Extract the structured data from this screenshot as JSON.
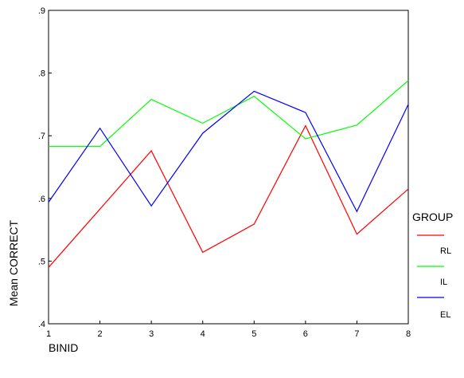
{
  "chart_data": {
    "type": "line",
    "title": "",
    "xlabel": "BINID",
    "ylabel": "Mean CORRECT",
    "x": [
      1,
      2,
      3,
      4,
      5,
      6,
      7,
      8
    ],
    "ylim": [
      0.4,
      0.9
    ],
    "yticks": [
      ".4",
      ".5",
      ".6",
      ".7",
      ".8",
      ".9"
    ],
    "xticks": [
      "1",
      "2",
      "3",
      "4",
      "5",
      "6",
      "7",
      "8"
    ],
    "grid": false,
    "legend": {
      "title": "GROUP",
      "placement": "right"
    },
    "series": [
      {
        "name": "RL",
        "color": "#ff0000",
        "values": [
          0.49,
          0.583,
          0.676,
          0.514,
          0.559,
          0.716,
          0.543,
          0.615
        ]
      },
      {
        "name": "IL",
        "color": "#00ff00",
        "values": [
          0.683,
          0.683,
          0.758,
          0.72,
          0.763,
          0.695,
          0.717,
          0.788
        ]
      },
      {
        "name": "EL",
        "color": "#0000ff",
        "values": [
          0.594,
          0.712,
          0.588,
          0.704,
          0.771,
          0.737,
          0.579,
          0.75
        ]
      }
    ]
  }
}
